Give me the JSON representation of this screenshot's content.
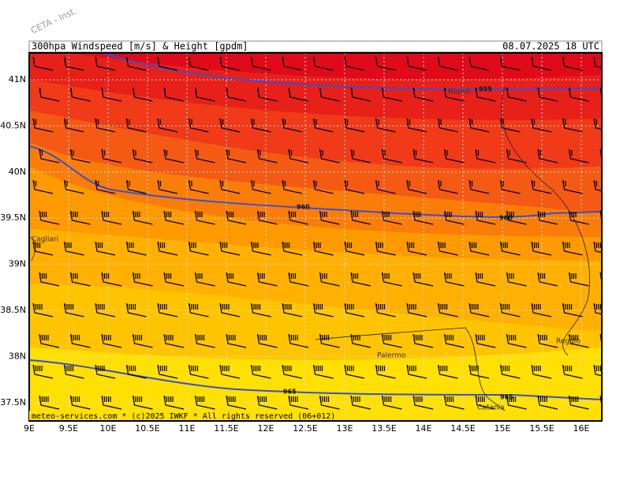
{
  "header": {
    "title": "300hpa Windspeed [m/s] & Height [gpdm]",
    "valid_time": "08.07.2025 18 UTC"
  },
  "watermark": "CETA - Inst.",
  "footer": "meteo-services.com * (c)2025 IWKF * All rights reserved (06+012)",
  "axes": {
    "latitude_labels": [
      "41N",
      "40.5N",
      "40N",
      "39.5N",
      "39N",
      "38.5N",
      "38N",
      "37.5N"
    ],
    "longitude_labels": [
      "9E",
      "9.5E",
      "10E",
      "10.5E",
      "11E",
      "11.5E",
      "12E",
      "12.5E",
      "13E",
      "13.5E",
      "14E",
      "14.5E",
      "15E",
      "15.5E",
      "16E"
    ]
  },
  "contour_labels": [
    "955",
    "960",
    "960",
    "965",
    "965"
  ],
  "places": [
    "Napoli",
    "Cagliari",
    "Palermo",
    "Catania",
    "Reggio"
  ]
}
